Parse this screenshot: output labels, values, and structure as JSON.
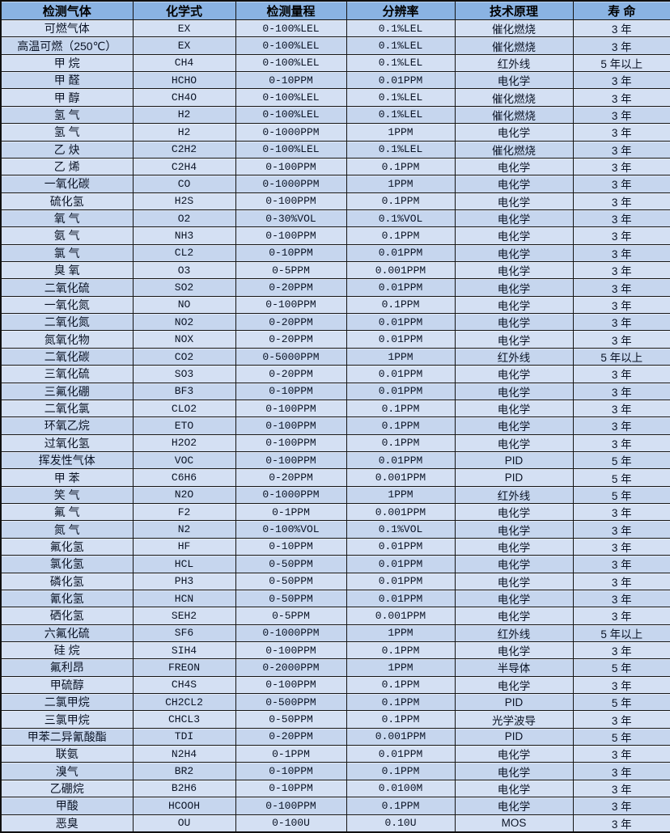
{
  "colors": {
    "header_bg": "#8ab3e3",
    "row_light": "#d4e0f3",
    "row_dark": "#c6d6ee",
    "border": "#151515",
    "text": "#0b1426"
  },
  "table": {
    "headers": [
      "检测气体",
      "化学式",
      "检测量程",
      "分辨率",
      "技术原理",
      "寿 命"
    ],
    "rows": [
      [
        "可燃气体",
        "EX",
        "0-100%LEL",
        "0.1%LEL",
        "催化燃烧",
        "3 年"
      ],
      [
        "高温可燃（250℃）",
        "EX",
        "0-100%LEL",
        "0.1%LEL",
        "催化燃烧",
        "3 年"
      ],
      [
        "甲 烷",
        "CH4",
        "0-100%LEL",
        "0.1%LEL",
        "红外线",
        "5 年以上"
      ],
      [
        "甲 醛",
        "HCHO",
        "0-10PPM",
        "0.01PPM",
        "电化学",
        "3 年"
      ],
      [
        "甲 醇",
        "CH4O",
        "0-100%LEL",
        "0.1%LEL",
        "催化燃烧",
        "3 年"
      ],
      [
        "氢 气",
        "H2",
        "0-100%LEL",
        "0.1%LEL",
        "催化燃烧",
        "3 年"
      ],
      [
        "氢 气",
        "H2",
        "0-1000PPM",
        "1PPM",
        "电化学",
        "3 年"
      ],
      [
        "乙 炔",
        "C2H2",
        "0-100%LEL",
        "0.1%LEL",
        "催化燃烧",
        "3 年"
      ],
      [
        "乙 烯",
        "C2H4",
        "0-100PPM",
        "0.1PPM",
        "电化学",
        "3 年"
      ],
      [
        "一氧化碳",
        "CO",
        "0-1000PPM",
        "1PPM",
        "电化学",
        "3 年"
      ],
      [
        "硫化氢",
        "H2S",
        "0-100PPM",
        "0.1PPM",
        "电化学",
        "3 年"
      ],
      [
        "氧 气",
        "O2",
        "0-30%VOL",
        "0.1%VOL",
        "电化学",
        "3 年"
      ],
      [
        "氨 气",
        "NH3",
        "0-100PPM",
        "0.1PPM",
        "电化学",
        "3 年"
      ],
      [
        "氯 气",
        "CL2",
        "0-10PPM",
        "0.01PPM",
        "电化学",
        "3 年"
      ],
      [
        "臭 氧",
        "O3",
        "0-5PPM",
        "0.001PPM",
        "电化学",
        "3 年"
      ],
      [
        "二氧化硫",
        "SO2",
        "0-20PPM",
        "0.01PPM",
        "电化学",
        "3 年"
      ],
      [
        "一氧化氮",
        "NO",
        "0-100PPM",
        "0.1PPM",
        "电化学",
        "3 年"
      ],
      [
        "二氧化氮",
        "NO2",
        "0-20PPM",
        "0.01PPM",
        "电化学",
        "3 年"
      ],
      [
        "氮氧化物",
        "NOX",
        "0-20PPM",
        "0.01PPM",
        "电化学",
        "3 年"
      ],
      [
        "二氧化碳",
        "CO2",
        "0-5000PPM",
        "1PPM",
        "红外线",
        "5 年以上"
      ],
      [
        "三氧化硫",
        "SO3",
        "0-20PPM",
        "0.01PPM",
        "电化学",
        "3 年"
      ],
      [
        "三氟化硼",
        "BF3",
        "0-10PPM",
        "0.01PPM",
        "电化学",
        "3 年"
      ],
      [
        "二氧化氯",
        "CLO2",
        "0-100PPM",
        "0.1PPM",
        "电化学",
        "3 年"
      ],
      [
        "环氧乙烷",
        "ETO",
        "0-100PPM",
        "0.1PPM",
        "电化学",
        "3 年"
      ],
      [
        "过氧化氢",
        "H2O2",
        "0-100PPM",
        "0.1PPM",
        "电化学",
        "3 年"
      ],
      [
        "挥发性气体",
        "VOC",
        "0-100PPM",
        "0.01PPM",
        "PID",
        "5 年"
      ],
      [
        "甲 苯",
        "C6H6",
        "0-20PPM",
        "0.001PPM",
        "PID",
        "5 年"
      ],
      [
        "笑 气",
        "N2O",
        "0-1000PPM",
        "1PPM",
        "红外线",
        "5 年"
      ],
      [
        "氟 气",
        "F2",
        "0-1PPM",
        "0.001PPM",
        "电化学",
        "3 年"
      ],
      [
        "氮 气",
        "N2",
        "0-100%VOL",
        "0.1%VOL",
        "电化学",
        "3 年"
      ],
      [
        "氟化氢",
        "HF",
        "0-10PPM",
        "0.01PPM",
        "电化学",
        "3 年"
      ],
      [
        "氯化氢",
        "HCL",
        "0-50PPM",
        "0.01PPM",
        "电化学",
        "3 年"
      ],
      [
        "磷化氢",
        "PH3",
        "0-50PPM",
        "0.01PPM",
        "电化学",
        "3 年"
      ],
      [
        "氰化氢",
        "HCN",
        "0-50PPM",
        "0.01PPM",
        "电化学",
        "3 年"
      ],
      [
        "硒化氢",
        "SEH2",
        "0-5PPM",
        "0.001PPM",
        "电化学",
        "3 年"
      ],
      [
        "六氟化硫",
        "SF6",
        "0-1000PPM",
        "1PPM",
        "红外线",
        "5 年以上"
      ],
      [
        "硅 烷",
        "SIH4",
        "0-100PPM",
        "0.1PPM",
        "电化学",
        "3 年"
      ],
      [
        "氟利昂",
        "FREON",
        "0-2000PPM",
        "1PPM",
        "半导体",
        "5 年"
      ],
      [
        "甲硫醇",
        "CH4S",
        "0-100PPM",
        "0.1PPM",
        "电化学",
        "3 年"
      ],
      [
        "二氯甲烷",
        "CH2CL2",
        "0-500PPM",
        "0.1PPM",
        "PID",
        "5 年"
      ],
      [
        "三氯甲烷",
        "CHCL3",
        "0-50PPM",
        "0.1PPM",
        "光学波导",
        "3 年"
      ],
      [
        "甲苯二异氰酸酯",
        "TDI",
        "0-20PPM",
        "0.001PPM",
        "PID",
        "5 年"
      ],
      [
        "联氨",
        "N2H4",
        "0-1PPM",
        "0.01PPM",
        "电化学",
        "3 年"
      ],
      [
        "溴气",
        "BR2",
        "0-10PPM",
        "0.1PPM",
        "电化学",
        "3 年"
      ],
      [
        "乙硼烷",
        "B2H6",
        "0-10PPM",
        "0.0100M",
        "电化学",
        "3 年"
      ],
      [
        "甲酸",
        "HCOOH",
        "0-100PPM",
        "0.1PPM",
        "电化学",
        "3 年"
      ],
      [
        "恶臭",
        "OU",
        "0-100U",
        "0.10U",
        "MOS",
        "3 年"
      ]
    ]
  }
}
